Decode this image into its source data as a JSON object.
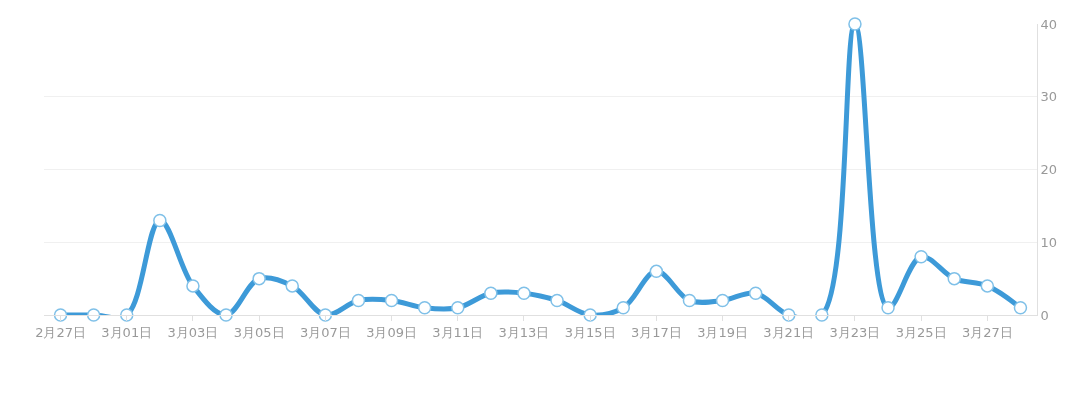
{
  "chart_data": {
    "type": "line",
    "categories": [
      "2月27日",
      null,
      "3月01日",
      null,
      "3月03日",
      null,
      "3月05日",
      null,
      "3月07日",
      null,
      "3月09日",
      null,
      "3月11日",
      null,
      "3月13日",
      null,
      "3月15日",
      null,
      "3月17日",
      null,
      "3月19日",
      null,
      "3月21日",
      null,
      "3月23日",
      null,
      "3月25日",
      null,
      "3月27日",
      null
    ],
    "series": [
      {
        "color": "#3d9ad8",
        "values": [
          0,
          0,
          0,
          13,
          4,
          0,
          5,
          4,
          0,
          2,
          2,
          1,
          1,
          3,
          3,
          2,
          0,
          1,
          6,
          2,
          2,
          3,
          0,
          0,
          40,
          1,
          8,
          5,
          4,
          1
        ]
      }
    ],
    "ylim": [
      0,
      40
    ],
    "yticks": [
      0,
      10,
      20,
      30,
      40
    ],
    "grid": "y",
    "marker": "circle",
    "line_style": "solid"
  }
}
